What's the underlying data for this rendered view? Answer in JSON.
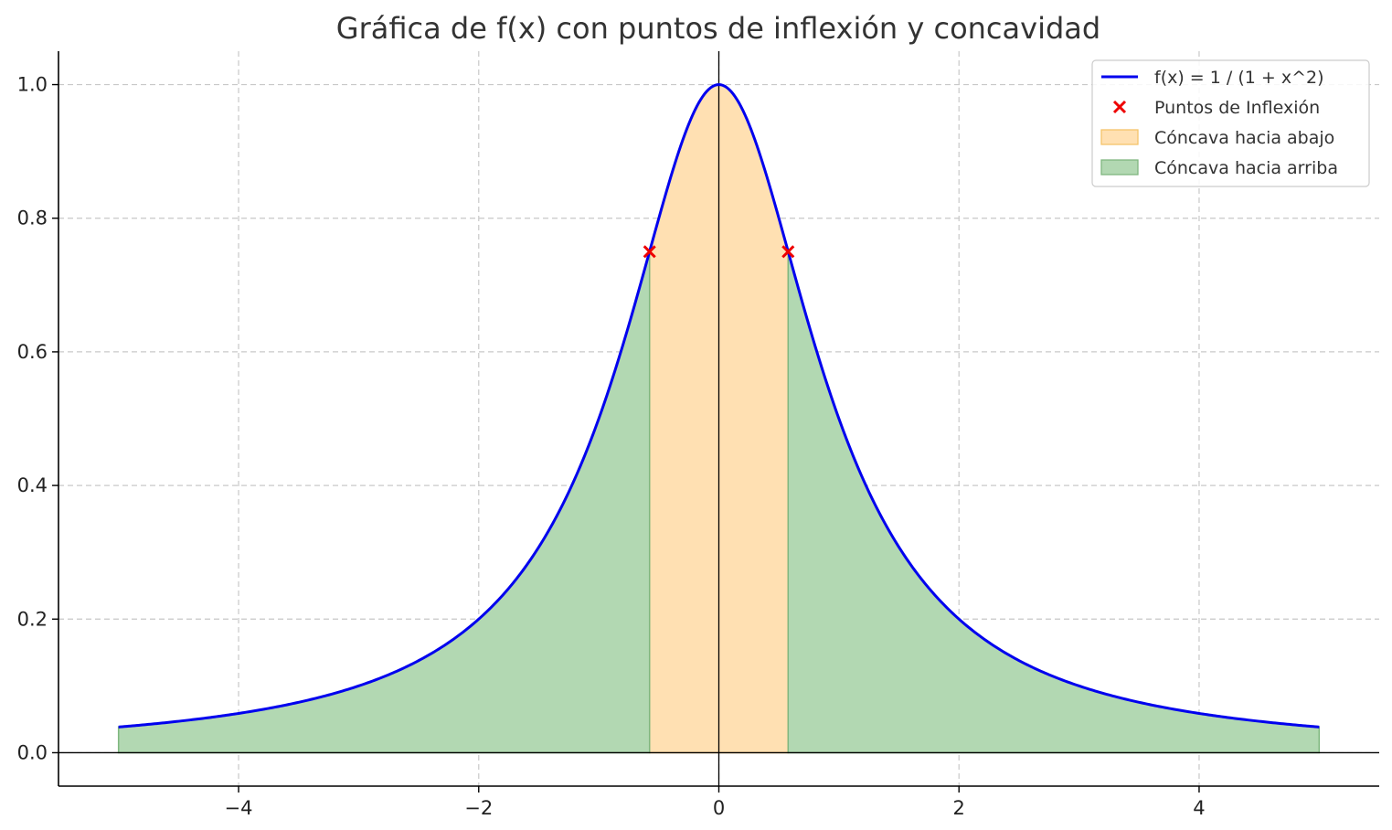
{
  "chart_data": {
    "type": "line",
    "title": "Gráfica de f(x) con puntos de inflexión y concavidad",
    "xlabel": "",
    "ylabel": "",
    "xlim": [
      -5.5,
      5.5
    ],
    "ylim": [
      -0.05,
      1.05
    ],
    "x_ticks": [
      -4,
      -2,
      0,
      2,
      4
    ],
    "x_tick_labels": [
      "−4",
      "−2",
      "0",
      "2",
      "4"
    ],
    "y_ticks": [
      0.0,
      0.2,
      0.4,
      0.6,
      0.8,
      1.0
    ],
    "y_tick_labels": [
      "0.0",
      "0.2",
      "0.4",
      "0.6",
      "0.8",
      "1.0"
    ],
    "grid": true,
    "legend_placement": "top-right",
    "function": {
      "name": "f(x) = 1 / (1 + x^2)",
      "domain": [
        -5,
        5
      ],
      "color": "#0000ee"
    },
    "inflection_points": {
      "name": "Puntos de Inflexión",
      "color": "#ee0000",
      "points": [
        {
          "x": -0.577,
          "y": 0.75
        },
        {
          "x": 0.577,
          "y": 0.75
        }
      ]
    },
    "regions": [
      {
        "name": "Cóncava hacia abajo",
        "x_range": [
          -0.577,
          0.577
        ],
        "color": "#ffe0b2",
        "edge": "#f5c46a"
      },
      {
        "name": "Cóncava hacia arriba",
        "x_range": [
          -5,
          -0.577
        ],
        "color": "#b2d8b2",
        "edge": "#7fb77f",
        "legend": true
      },
      {
        "name": "Cóncava hacia arriba",
        "x_range": [
          0.577,
          5
        ],
        "color": "#b2d8b2",
        "edge": "#7fb77f",
        "legend": false
      }
    ]
  }
}
